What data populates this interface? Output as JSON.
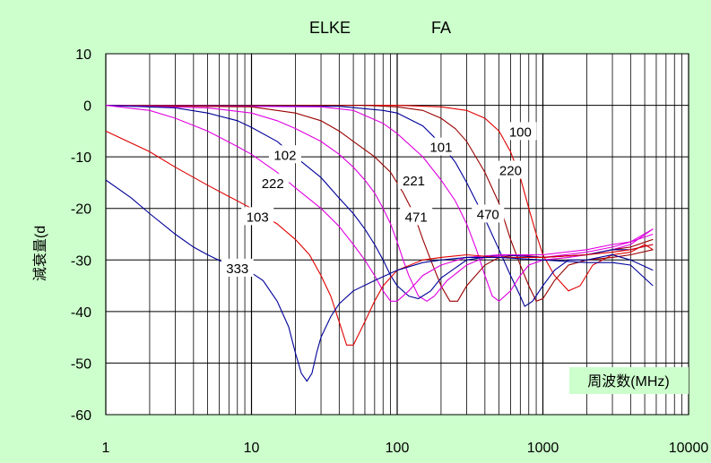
{
  "chart_data": {
    "type": "line",
    "title_left": "ELKE",
    "title_right": "FA",
    "ylabel": "減衰量(d",
    "xlabel": "周波数(MHz)",
    "x_scale": "log",
    "xlim": [
      1,
      10000
    ],
    "ylim": [
      -60,
      10
    ],
    "grid": true,
    "x_ticks": [
      1,
      10,
      100,
      1000,
      10000
    ],
    "x_tick_labels": [
      "1",
      "10",
      "100",
      "1000",
      "10000"
    ],
    "y_ticks": [
      10,
      0,
      -10,
      -20,
      -30,
      -40,
      -50,
      -60
    ],
    "y_tick_labels": [
      "10",
      "0",
      "-10",
      "-20",
      "-30",
      "-40",
      "-50",
      "-60"
    ],
    "colors": {
      "red": "#e00000",
      "blue": "#000099",
      "magenta": "#e000e0",
      "brown": "#990000"
    },
    "series": [
      {
        "name": "100",
        "color": "#e00000",
        "points": [
          [
            1,
            0
          ],
          [
            100,
            0
          ],
          [
            200,
            -0.3
          ],
          [
            300,
            -1
          ],
          [
            400,
            -2.5
          ],
          [
            500,
            -5
          ],
          [
            600,
            -9
          ],
          [
            700,
            -14
          ],
          [
            800,
            -20
          ],
          [
            900,
            -25
          ],
          [
            1000,
            -29
          ],
          [
            1200,
            -33
          ],
          [
            1500,
            -36
          ],
          [
            1800,
            -35
          ],
          [
            2200,
            -31
          ],
          [
            3000,
            -29
          ],
          [
            4000,
            -28.5
          ],
          [
            5000,
            -27
          ],
          [
            5700,
            -28
          ]
        ]
      },
      {
        "name": "220",
        "color": "#990000",
        "points": [
          [
            1,
            0
          ],
          [
            60,
            0
          ],
          [
            100,
            -0.3
          ],
          [
            150,
            -1
          ],
          [
            200,
            -2.5
          ],
          [
            250,
            -4.5
          ],
          [
            300,
            -7
          ],
          [
            400,
            -13
          ],
          [
            500,
            -19
          ],
          [
            600,
            -26
          ],
          [
            700,
            -31
          ],
          [
            800,
            -35
          ],
          [
            900,
            -38
          ],
          [
            1000,
            -37.5
          ],
          [
            1200,
            -34
          ],
          [
            1500,
            -31
          ],
          [
            2000,
            -30
          ],
          [
            3000,
            -29.5
          ],
          [
            4000,
            -29
          ],
          [
            5700,
            -28
          ]
        ]
      },
      {
        "name": "101",
        "color": "#000099",
        "points": [
          [
            1,
            0
          ],
          [
            40,
            -0.2
          ],
          [
            80,
            -1
          ],
          [
            100,
            -1.5
          ],
          [
            150,
            -4
          ],
          [
            200,
            -7.5
          ],
          [
            250,
            -11
          ],
          [
            300,
            -15
          ],
          [
            400,
            -22
          ],
          [
            500,
            -28
          ],
          [
            600,
            -33
          ],
          [
            700,
            -37
          ],
          [
            750,
            -39
          ],
          [
            850,
            -38
          ],
          [
            1000,
            -35
          ],
          [
            1200,
            -32
          ],
          [
            1500,
            -30
          ],
          [
            2000,
            -30
          ],
          [
            3000,
            -29
          ],
          [
            4000,
            -30
          ],
          [
            5700,
            -32
          ]
        ]
      },
      {
        "name": "470",
        "color": "#e000e0",
        "points": [
          [
            1,
            0
          ],
          [
            30,
            -0.3
          ],
          [
            50,
            -1
          ],
          [
            80,
            -3.5
          ],
          [
            100,
            -5.5
          ],
          [
            150,
            -10
          ],
          [
            200,
            -14.5
          ],
          [
            250,
            -18.5
          ],
          [
            300,
            -23
          ],
          [
            350,
            -28
          ],
          [
            400,
            -33
          ],
          [
            450,
            -37
          ],
          [
            500,
            -38
          ],
          [
            600,
            -36
          ],
          [
            700,
            -33
          ],
          [
            800,
            -31
          ],
          [
            1000,
            -30
          ],
          [
            1500,
            -29.5
          ],
          [
            2000,
            -29
          ],
          [
            3000,
            -28
          ],
          [
            4000,
            -27
          ],
          [
            5700,
            -24
          ]
        ]
      },
      {
        "name": "221",
        "color": "#990000",
        "points": [
          [
            1,
            0
          ],
          [
            10,
            -0.3
          ],
          [
            20,
            -1.5
          ],
          [
            30,
            -3
          ],
          [
            40,
            -5
          ],
          [
            50,
            -7
          ],
          [
            70,
            -10
          ],
          [
            90,
            -13
          ],
          [
            110,
            -17
          ],
          [
            130,
            -21
          ],
          [
            150,
            -26
          ],
          [
            170,
            -30
          ],
          [
            200,
            -35
          ],
          [
            230,
            -38
          ],
          [
            260,
            -38
          ],
          [
            300,
            -35
          ],
          [
            400,
            -31
          ],
          [
            500,
            -29.5
          ],
          [
            700,
            -29
          ],
          [
            1000,
            -29.5
          ],
          [
            2000,
            -29
          ],
          [
            3000,
            -28
          ],
          [
            4000,
            -27.5
          ],
          [
            5700,
            -26
          ]
        ]
      },
      {
        "name": "471",
        "color": "#e000e0",
        "points": [
          [
            1,
            0
          ],
          [
            5,
            -0.5
          ],
          [
            10,
            -1.5
          ],
          [
            15,
            -3
          ],
          [
            20,
            -4.5
          ],
          [
            30,
            -7
          ],
          [
            40,
            -9.5
          ],
          [
            50,
            -12
          ],
          [
            60,
            -14.5
          ],
          [
            70,
            -17
          ],
          [
            80,
            -20
          ],
          [
            90,
            -23
          ],
          [
            100,
            -26.5
          ],
          [
            110,
            -30
          ],
          [
            120,
            -33
          ],
          [
            140,
            -37
          ],
          [
            160,
            -38
          ],
          [
            180,
            -37
          ],
          [
            220,
            -34
          ],
          [
            300,
            -31
          ],
          [
            400,
            -29.5
          ],
          [
            600,
            -29
          ],
          [
            1000,
            -29.5
          ],
          [
            2000,
            -28.5
          ],
          [
            3000,
            -27.5
          ],
          [
            4000,
            -26.5
          ],
          [
            5700,
            -24
          ]
        ]
      },
      {
        "name": "102",
        "color": "#000099",
        "points": [
          [
            1,
            0
          ],
          [
            3,
            -0.5
          ],
          [
            5,
            -1.5
          ],
          [
            8,
            -3
          ],
          [
            10,
            -4.3
          ],
          [
            15,
            -7
          ],
          [
            20,
            -10
          ],
          [
            30,
            -14
          ],
          [
            40,
            -18
          ],
          [
            50,
            -21
          ],
          [
            60,
            -24
          ],
          [
            70,
            -27
          ],
          [
            80,
            -30
          ],
          [
            90,
            -33
          ],
          [
            100,
            -35
          ],
          [
            120,
            -37
          ],
          [
            140,
            -37.5
          ],
          [
            170,
            -36
          ],
          [
            200,
            -33.5
          ],
          [
            300,
            -30
          ],
          [
            500,
            -29
          ],
          [
            1000,
            -29.5
          ],
          [
            2000,
            -29
          ],
          [
            3000,
            -28
          ],
          [
            4000,
            -28
          ],
          [
            5700,
            -27
          ]
        ]
      },
      {
        "name": "222",
        "color": "#e000e0",
        "points": [
          [
            1,
            0
          ],
          [
            2,
            -1
          ],
          [
            3,
            -2.5
          ],
          [
            5,
            -5
          ],
          [
            8,
            -8
          ],
          [
            10,
            -9.5
          ],
          [
            15,
            -13
          ],
          [
            20,
            -16
          ],
          [
            30,
            -20
          ],
          [
            40,
            -23.5
          ],
          [
            50,
            -27
          ],
          [
            60,
            -30
          ],
          [
            70,
            -33
          ],
          [
            80,
            -36
          ],
          [
            90,
            -38
          ],
          [
            100,
            -38
          ],
          [
            120,
            -36
          ],
          [
            150,
            -33
          ],
          [
            200,
            -31
          ],
          [
            300,
            -29.5
          ],
          [
            500,
            -29
          ],
          [
            1000,
            -29
          ],
          [
            2000,
            -28
          ],
          [
            3000,
            -27
          ],
          [
            4000,
            -26.5
          ],
          [
            5700,
            -25
          ]
        ]
      },
      {
        "name": "103",
        "color": "#e00000",
        "points": [
          [
            1,
            -5
          ],
          [
            2,
            -9
          ],
          [
            3,
            -12
          ],
          [
            5,
            -15.5
          ],
          [
            10,
            -20
          ],
          [
            15,
            -23
          ],
          [
            20,
            -26
          ],
          [
            25,
            -29
          ],
          [
            30,
            -33
          ],
          [
            35,
            -37
          ],
          [
            40,
            -42
          ],
          [
            45,
            -46.5
          ],
          [
            50,
            -46.5
          ],
          [
            60,
            -42
          ],
          [
            70,
            -38
          ],
          [
            80,
            -35
          ],
          [
            100,
            -32
          ],
          [
            150,
            -30
          ],
          [
            200,
            -29.5
          ],
          [
            300,
            -29
          ],
          [
            500,
            -29.5
          ],
          [
            1000,
            -29.5
          ],
          [
            2000,
            -29
          ],
          [
            3000,
            -28.5
          ],
          [
            4000,
            -28
          ],
          [
            5700,
            -27
          ]
        ]
      },
      {
        "name": "333",
        "color": "#000099",
        "points": [
          [
            1,
            -14.5
          ],
          [
            1.5,
            -18
          ],
          [
            2,
            -21
          ],
          [
            3,
            -25
          ],
          [
            4,
            -27.5
          ],
          [
            5,
            -29
          ],
          [
            7,
            -31
          ],
          [
            10,
            -32.5
          ],
          [
            12,
            -34
          ],
          [
            15,
            -38
          ],
          [
            18,
            -43
          ],
          [
            20,
            -48
          ],
          [
            22,
            -52
          ],
          [
            24,
            -53.5
          ],
          [
            26,
            -52
          ],
          [
            28,
            -48
          ],
          [
            30,
            -45
          ],
          [
            35,
            -41
          ],
          [
            40,
            -38.5
          ],
          [
            50,
            -36
          ],
          [
            70,
            -34
          ],
          [
            100,
            -32
          ],
          [
            150,
            -30.5
          ],
          [
            200,
            -30
          ],
          [
            300,
            -29.5
          ],
          [
            500,
            -29.5
          ],
          [
            1000,
            -30
          ],
          [
            2000,
            -30.5
          ],
          [
            3000,
            -30.5
          ],
          [
            4000,
            -31
          ],
          [
            5700,
            -35
          ]
        ]
      }
    ],
    "annotations": [
      {
        "text": "100",
        "x": 700,
        "y": -5
      },
      {
        "text": "220",
        "x": 600,
        "y": -12.5
      },
      {
        "text": "101",
        "x": 200,
        "y": -8
      },
      {
        "text": "221",
        "x": 130,
        "y": -14.5
      },
      {
        "text": "470",
        "x": 420,
        "y": -21
      },
      {
        "text": "471",
        "x": 135,
        "y": -21.5
      },
      {
        "text": "102",
        "x": 17,
        "y": -9.5
      },
      {
        "text": "222",
        "x": 14,
        "y": -15
      },
      {
        "text": "103",
        "x": 11,
        "y": -21.5
      },
      {
        "text": "333",
        "x": 8,
        "y": -31.5
      }
    ]
  }
}
